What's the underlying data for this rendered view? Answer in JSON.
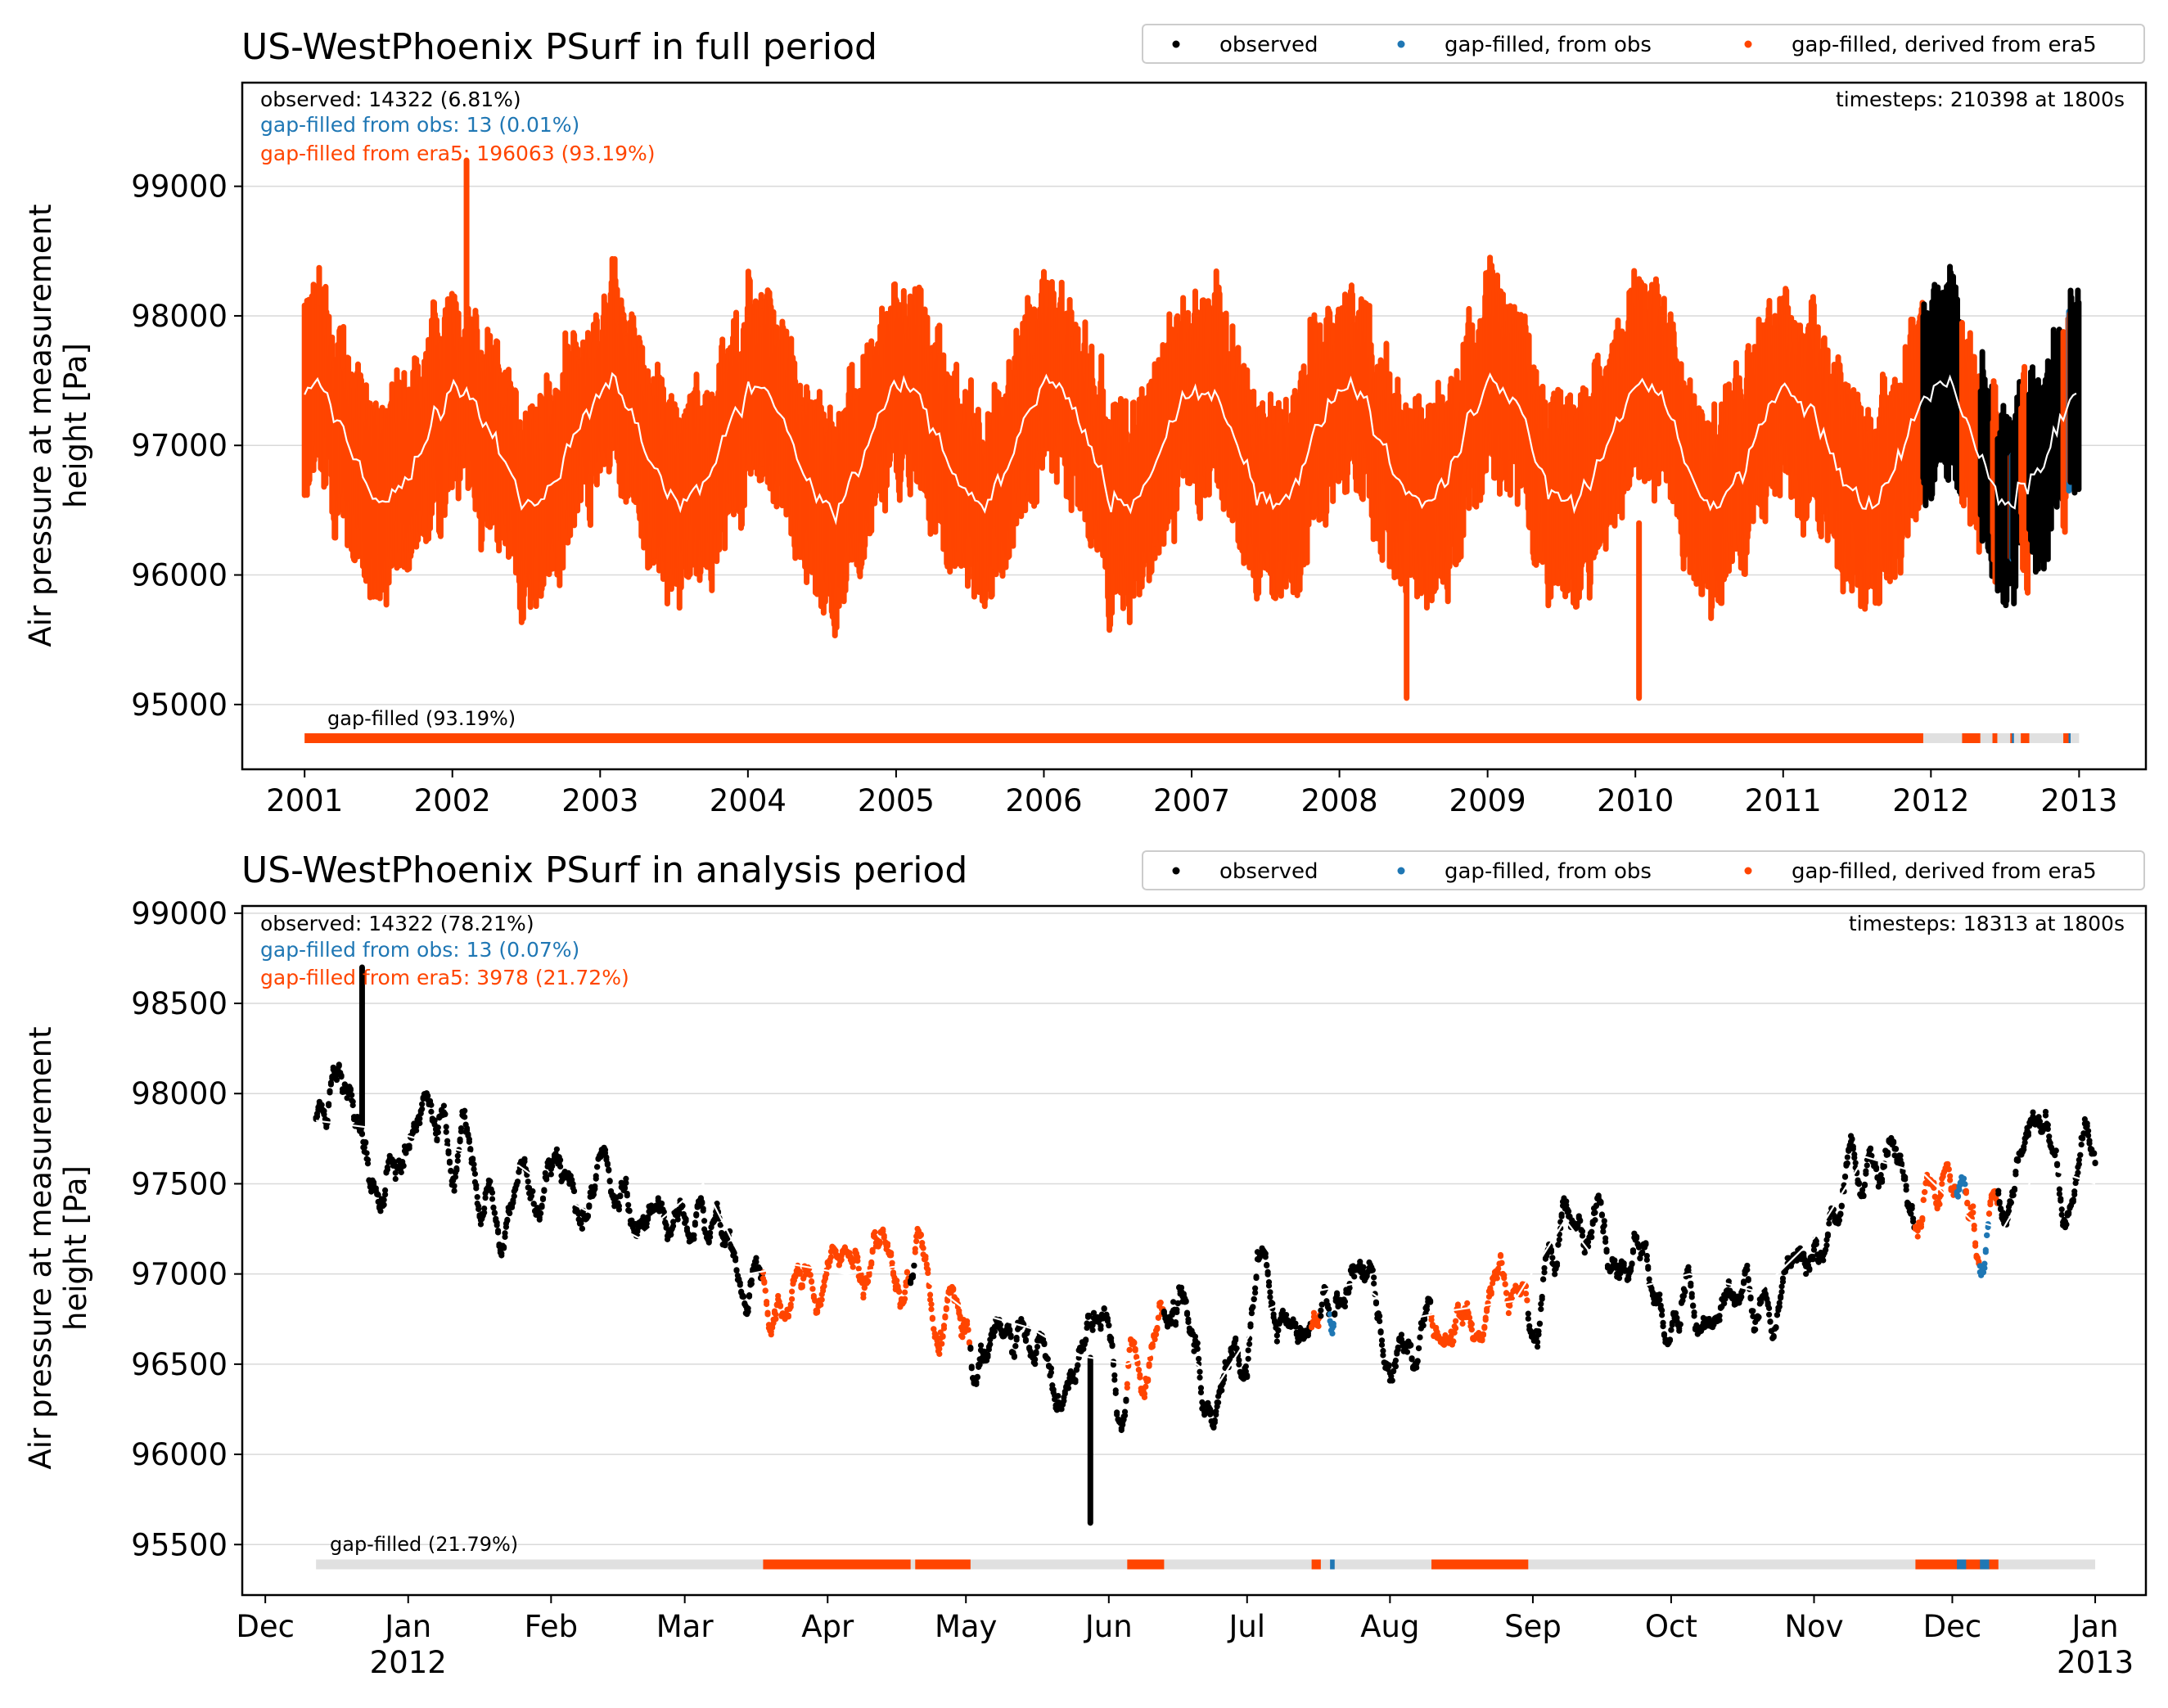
{
  "colors": {
    "observed": "#000000",
    "gap_obs": "#1f77b4",
    "gap_era5": "#ff4500",
    "mean_line": "#ffffff",
    "bar_bg": "#e0e0e0",
    "grid": "#d9d9d9"
  },
  "chart_data": [
    {
      "type": "scatter",
      "title": "US-WestPhoenix PSurf in full period",
      "ylabel_line1": "Air pressure at measurement",
      "ylabel_line2": "height [Pa]",
      "xlim": [
        "2000-07-31",
        "2013-06-15"
      ],
      "ylim": [
        94500,
        99800
      ],
      "yticks": [
        95000,
        96000,
        97000,
        98000,
        99000
      ],
      "xticks": [
        "2001",
        "2002",
        "2003",
        "2004",
        "2005",
        "2006",
        "2007",
        "2008",
        "2009",
        "2010",
        "2011",
        "2012",
        "2013"
      ],
      "grid": true,
      "legend": {
        "position": "top-right",
        "entries": [
          "observed",
          "gap-filled, from obs",
          "gap-filled, derived from era5"
        ]
      },
      "stats": {
        "observed": "observed: 14322 (6.81%)",
        "gap_obs": "gap-filled from obs: 13 (0.01%)",
        "gap_era5": "gap-filled from era5: 196063 (93.19%)",
        "timesteps": "timesteps: 210398 at 1800s"
      },
      "gap_bar_label": "gap-filled (93.19%)",
      "bar_y": 94740,
      "period": [
        "2001-01-01",
        "2013-01-01"
      ],
      "gap_bar_segments": [
        {
          "start": "2001-01-01",
          "end": "2011-12-12",
          "source": "era5"
        },
        {
          "start": "2012-03-18",
          "end": "2012-05-01",
          "source": "era5"
        },
        {
          "start": "2012-06-01",
          "end": "2012-06-12",
          "source": "era5"
        },
        {
          "start": "2012-07-15",
          "end": "2012-07-17",
          "source": "era5"
        },
        {
          "start": "2012-07-19",
          "end": "2012-07-20",
          "source": "obs"
        },
        {
          "start": "2012-08-10",
          "end": "2012-08-30",
          "source": "era5"
        },
        {
          "start": "2012-11-23",
          "end": "2012-12-10",
          "source": "era5"
        },
        {
          "start": "2012-12-06",
          "end": "2012-12-07",
          "source": "obs"
        }
      ],
      "seasonal_mean": {
        "base": 97000,
        "amplitude": 450,
        "peak_month": 1
      },
      "noise_amplitude": 700,
      "observed_start": "2011-12-12",
      "annotations": {
        "max_spike": {
          "date": "2002-02-05",
          "value": 99200
        },
        "min_spike": {
          "date": "2010-01-10",
          "value": 95050
        },
        "min_spike_2": {
          "date": "2008-06-15",
          "value": 95050
        }
      }
    },
    {
      "type": "scatter",
      "title": "US-WestPhoenix PSurf in analysis period",
      "ylabel_line1": "Air pressure at measurement",
      "ylabel_line2": "height [Pa]",
      "xlim": [
        "2011-11-26",
        "2013-01-12"
      ],
      "ylim": [
        95220,
        99040
      ],
      "yticks": [
        95500,
        96000,
        96500,
        97000,
        97500,
        98000,
        98500,
        99000
      ],
      "xticks": [
        {
          "date": "2011-12-01",
          "label": "Dec",
          "sub": ""
        },
        {
          "date": "2012-01-01",
          "label": "Jan",
          "sub": "2012"
        },
        {
          "date": "2012-02-01",
          "label": "Feb",
          "sub": ""
        },
        {
          "date": "2012-03-01",
          "label": "Mar",
          "sub": ""
        },
        {
          "date": "2012-04-01",
          "label": "Apr",
          "sub": ""
        },
        {
          "date": "2012-05-01",
          "label": "May",
          "sub": ""
        },
        {
          "date": "2012-06-01",
          "label": "Jun",
          "sub": ""
        },
        {
          "date": "2012-07-01",
          "label": "Jul",
          "sub": ""
        },
        {
          "date": "2012-08-01",
          "label": "Aug",
          "sub": ""
        },
        {
          "date": "2012-09-01",
          "label": "Sep",
          "sub": ""
        },
        {
          "date": "2012-10-01",
          "label": "Oct",
          "sub": ""
        },
        {
          "date": "2012-11-01",
          "label": "Nov",
          "sub": ""
        },
        {
          "date": "2012-12-01",
          "label": "Dec",
          "sub": ""
        },
        {
          "date": "2013-01-01",
          "label": "Jan",
          "sub": "2013"
        }
      ],
      "grid": true,
      "legend": {
        "position": "top-right",
        "entries": [
          "observed",
          "gap-filled, from obs",
          "gap-filled, derived from era5"
        ]
      },
      "stats": {
        "observed": "observed: 14322 (78.21%)",
        "gap_obs": "gap-filled from obs: 13 (0.07%)",
        "gap_era5": "gap-filled from era5: 3978 (21.72%)",
        "timesteps": "timesteps: 18313 at 1800s"
      },
      "gap_bar_label": "gap-filled (21.79%)",
      "bar_y": 95390,
      "period": [
        "2011-12-12",
        "2013-01-01"
      ],
      "gap_bar_segments": [
        {
          "start": "2012-03-18",
          "end": "2012-04-18",
          "source": "era5"
        },
        {
          "start": "2012-04-20",
          "end": "2012-05-01",
          "source": "era5"
        },
        {
          "start": "2012-06-05",
          "end": "2012-06-12",
          "source": "era5"
        },
        {
          "start": "2012-07-15",
          "end": "2012-07-16",
          "source": "era5"
        },
        {
          "start": "2012-07-19",
          "end": "2012-07-19",
          "source": "obs"
        },
        {
          "start": "2012-08-10",
          "end": "2012-08-30",
          "source": "era5"
        },
        {
          "start": "2012-11-23",
          "end": "2012-12-10",
          "source": "era5"
        },
        {
          "start": "2012-12-02",
          "end": "2012-12-03",
          "source": "obs"
        },
        {
          "start": "2012-12-07",
          "end": "2012-12-08",
          "source": "obs"
        }
      ],
      "monthly_mean": [
        {
          "date": "2011-12-12",
          "value": 97850
        },
        {
          "date": "2011-12-27",
          "value": 97800
        },
        {
          "date": "2012-01-10",
          "value": 97700
        },
        {
          "date": "2012-01-25",
          "value": 97600
        },
        {
          "date": "2012-02-05",
          "value": 97400
        },
        {
          "date": "2012-02-20",
          "value": 97200
        },
        {
          "date": "2012-03-05",
          "value": 97500
        },
        {
          "date": "2012-03-15",
          "value": 97000
        },
        {
          "date": "2012-03-25",
          "value": 97050
        },
        {
          "date": "2012-04-05",
          "value": 97000
        },
        {
          "date": "2012-04-18",
          "value": 97050
        },
        {
          "date": "2012-05-01",
          "value": 96800
        },
        {
          "date": "2012-05-15",
          "value": 96700
        },
        {
          "date": "2012-05-25",
          "value": 96550
        },
        {
          "date": "2012-06-05",
          "value": 96500
        },
        {
          "date": "2012-06-15",
          "value": 96600
        },
        {
          "date": "2012-06-25",
          "value": 96400
        },
        {
          "date": "2012-07-05",
          "value": 96800
        },
        {
          "date": "2012-07-15",
          "value": 96900
        },
        {
          "date": "2012-07-25",
          "value": 96950
        },
        {
          "date": "2012-08-05",
          "value": 96750
        },
        {
          "date": "2012-08-15",
          "value": 96800
        },
        {
          "date": "2012-08-28",
          "value": 96850
        },
        {
          "date": "2012-09-08",
          "value": 97300
        },
        {
          "date": "2012-09-20",
          "value": 96900
        },
        {
          "date": "2012-10-05",
          "value": 97000
        },
        {
          "date": "2012-10-20",
          "value": 96900
        },
        {
          "date": "2012-11-01",
          "value": 97200
        },
        {
          "date": "2012-11-12",
          "value": 97650
        },
        {
          "date": "2012-11-25",
          "value": 97550
        },
        {
          "date": "2012-12-05",
          "value": 97300
        },
        {
          "date": "2012-12-12",
          "value": 97250
        },
        {
          "date": "2012-12-20",
          "value": 97600
        },
        {
          "date": "2013-01-01",
          "value": 97500
        }
      ],
      "noise_amplitude": 380,
      "annotations": {
        "max_spike": {
          "date": "2011-12-22",
          "value": 98700
        },
        "min_spike": {
          "date": "2012-05-28",
          "value": 95620
        }
      }
    }
  ]
}
